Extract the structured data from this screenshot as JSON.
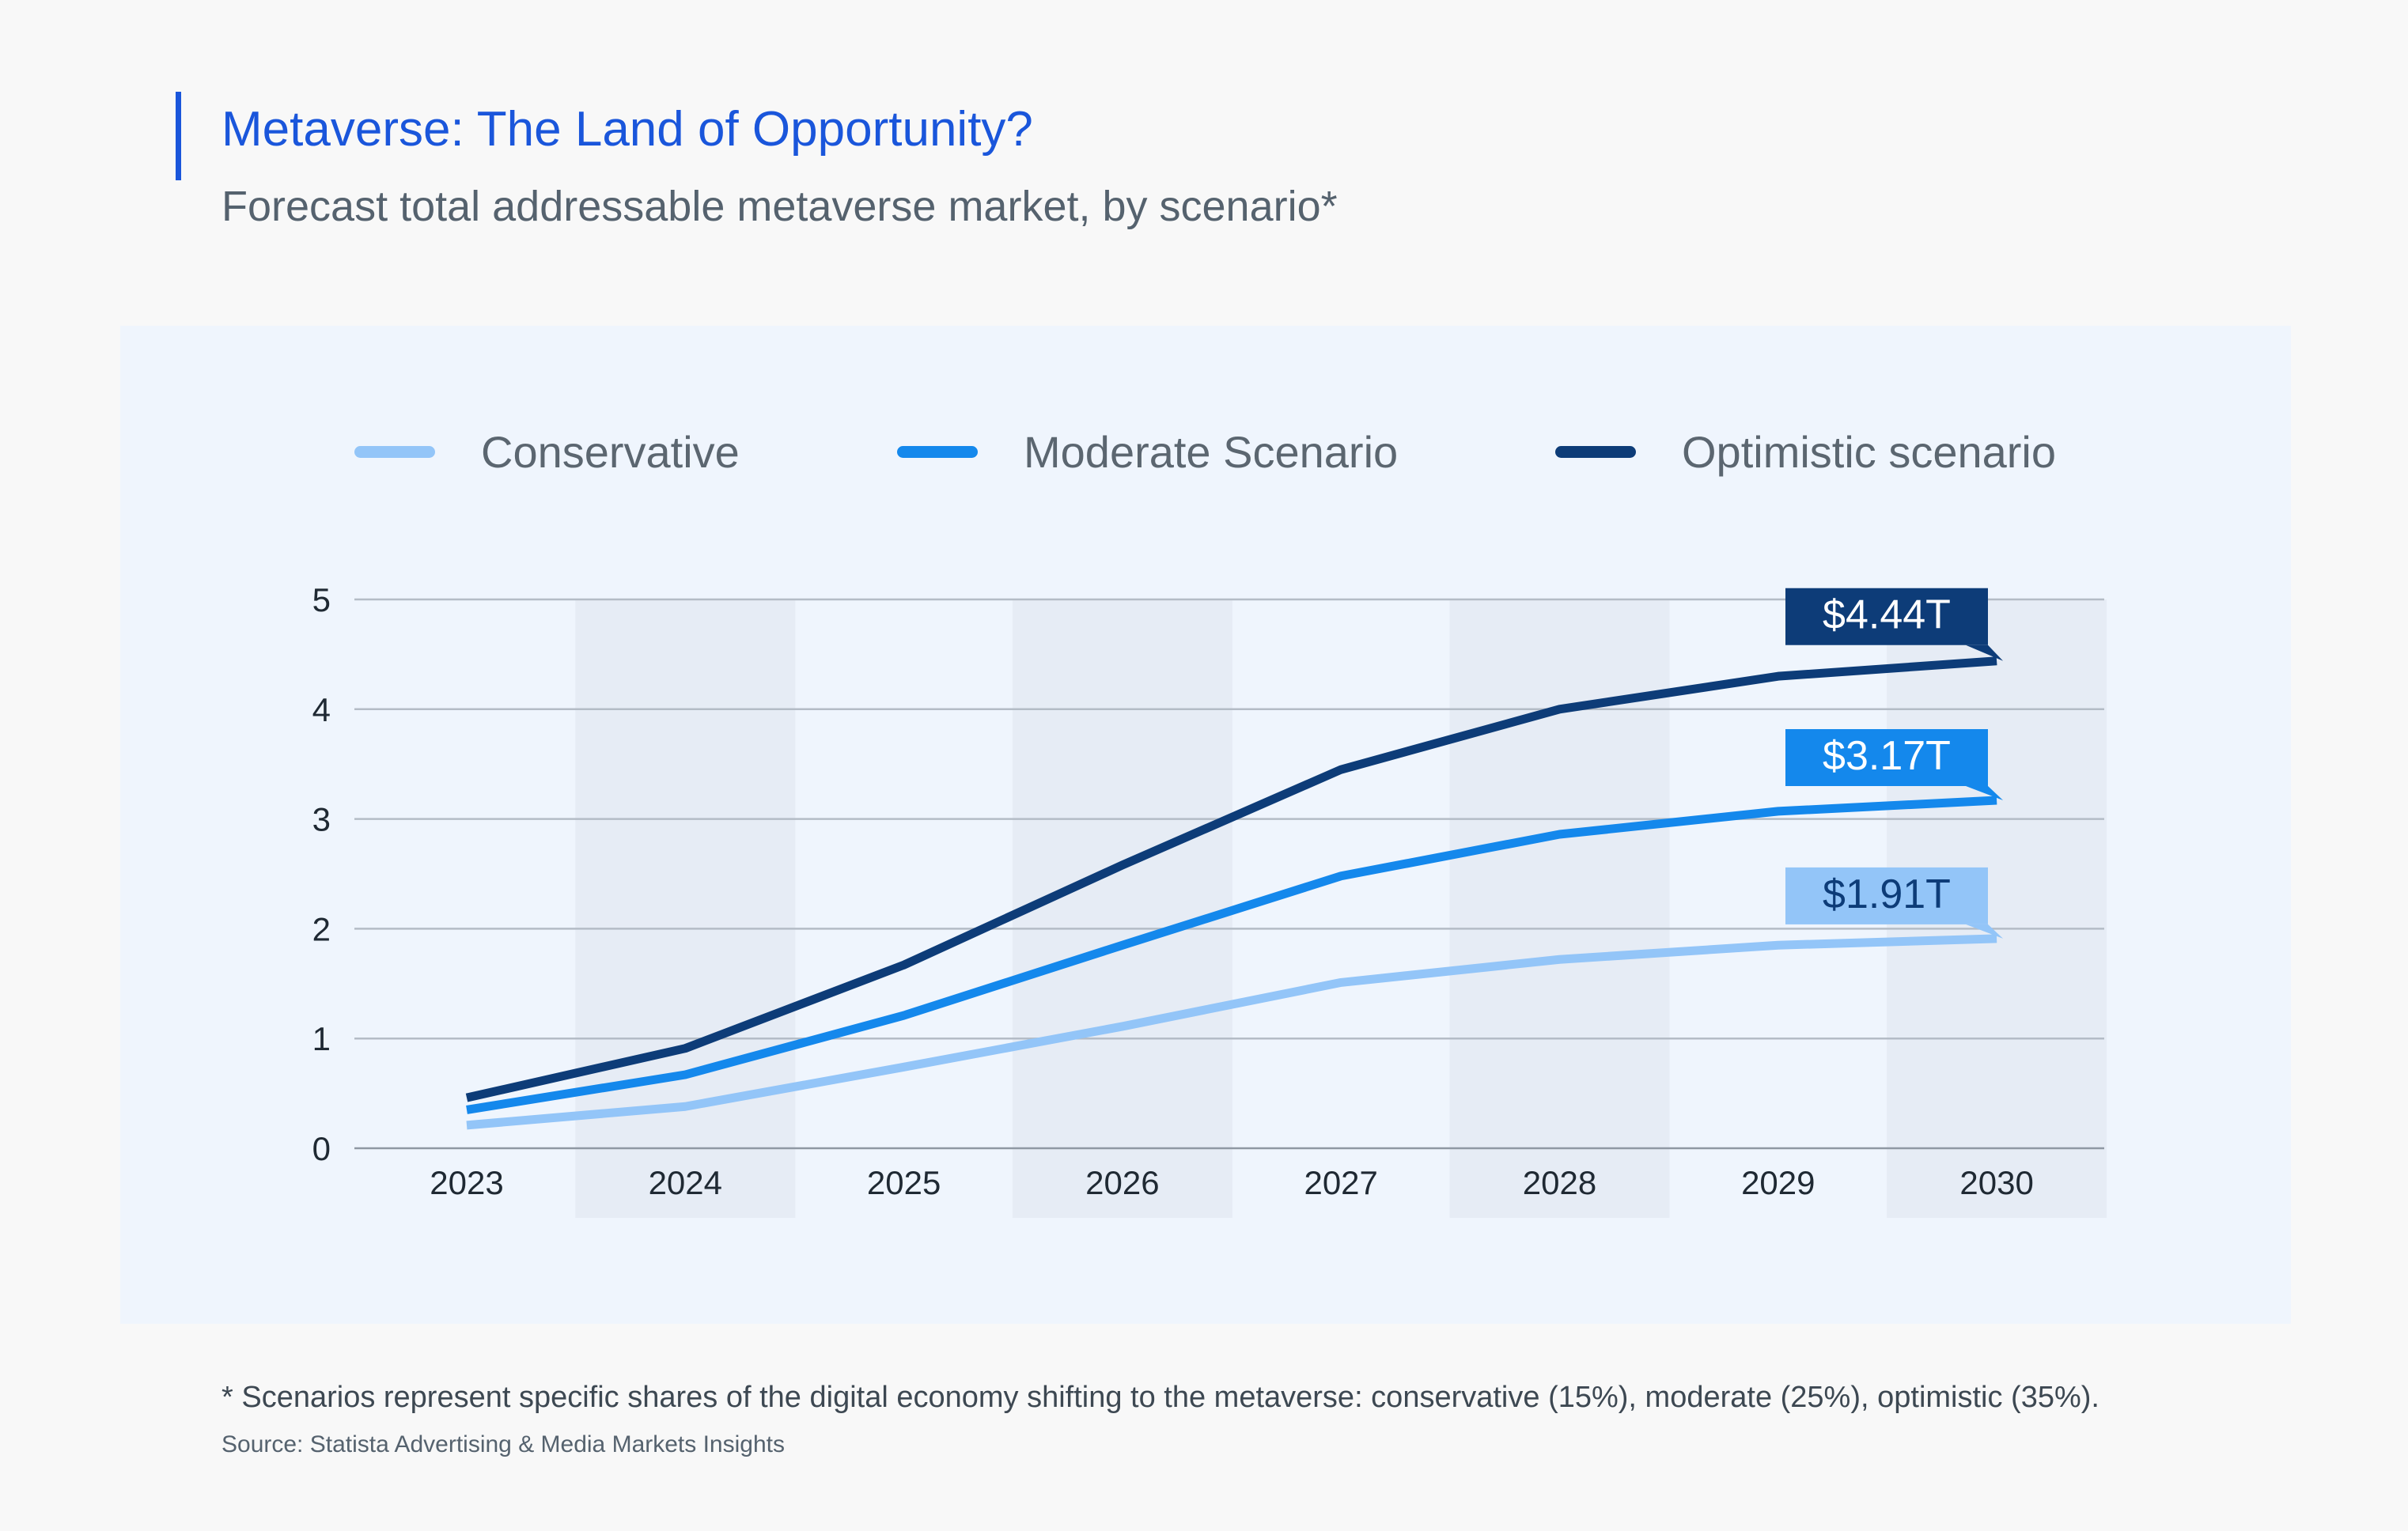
{
  "header": {
    "title": "Metaverse: The Land of Opportunity?",
    "subtitle": "Forecast total addressable metaverse market, by scenario*"
  },
  "legend": [
    {
      "label": "Conservative",
      "color": "#93c5f8"
    },
    {
      "label": "Moderate Scenario",
      "color": "#1488ec"
    },
    {
      "label": "Optimistic scenario",
      "color": "#0d3c78"
    }
  ],
  "chart_data": {
    "type": "line",
    "title": "Metaverse: The Land of Opportunity?",
    "subtitle": "Forecast total addressable metaverse market, by scenario*",
    "xlabel": "",
    "ylabel": "",
    "x": [
      "2023",
      "2024",
      "2025",
      "2026",
      "2027",
      "2028",
      "2029",
      "2030"
    ],
    "ylim": [
      0,
      5
    ],
    "yticks": [
      0,
      1,
      2,
      3,
      4,
      5
    ],
    "grid": true,
    "legend_position": "top",
    "series": [
      {
        "name": "Conservative",
        "color": "#93c5f8",
        "values": [
          0.21,
          0.38,
          0.74,
          1.11,
          1.51,
          1.72,
          1.85,
          1.91
        ],
        "end_label": "$1.91T",
        "label_text_color": "#0d3c78"
      },
      {
        "name": "Moderate Scenario",
        "color": "#1488ec",
        "values": [
          0.35,
          0.67,
          1.21,
          1.85,
          2.48,
          2.86,
          3.07,
          3.17
        ],
        "end_label": "$3.17T",
        "label_text_color": "#ffffff"
      },
      {
        "name": "Optimistic scenario",
        "color": "#0d3c78",
        "values": [
          0.46,
          0.91,
          1.67,
          2.58,
          3.45,
          4.0,
          4.3,
          4.44
        ],
        "end_label": "$4.44T",
        "label_text_color": "#ffffff"
      }
    ]
  },
  "footer": {
    "footnote": "* Scenarios represent specific shares of the digital economy shifting to the metaverse: conservative (15%), moderate (25%), optimistic (35%).",
    "source": "Source: Statista Advertising & Media Markets Insights"
  }
}
